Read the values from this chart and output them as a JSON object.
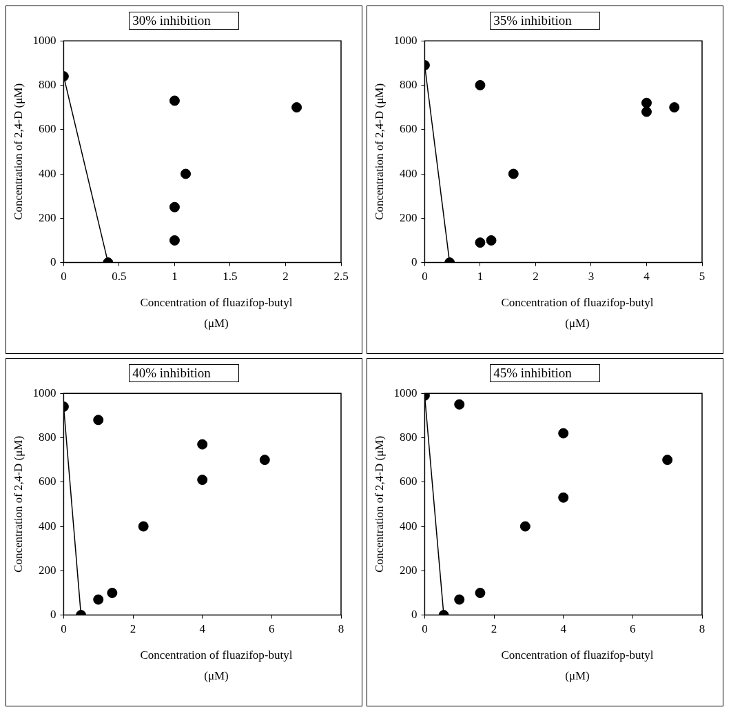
{
  "chart_data": [
    {
      "type": "scatter",
      "title": "30% inhibition",
      "xlabel": "Concentration of fluazifop-butyl (μM)",
      "ylabel": "Concentration of 2,4-D (μM)",
      "xlim": [
        0,
        2.5
      ],
      "xticks": [
        0,
        0.5,
        1,
        1.5,
        2,
        2.5
      ],
      "ylim": [
        0,
        1000
      ],
      "yticks": [
        0,
        200,
        400,
        600,
        800,
        1000
      ],
      "marker": "circle",
      "series": [
        {
          "type": "scatter",
          "color": "#000000",
          "x": [
            0,
            0.4,
            1,
            1.1,
            1,
            1,
            2.1
          ],
          "values": [
            840,
            0,
            730,
            400,
            250,
            100,
            700
          ]
        },
        {
          "type": "line",
          "color": "#000000",
          "marker": "none",
          "x": [
            0,
            0.4
          ],
          "values": [
            840,
            0
          ]
        }
      ]
    },
    {
      "type": "scatter",
      "title": "35% inhibition",
      "xlabel": "Concentration of fluazifop-butyl (μM)",
      "ylabel": "Concentration of 2,4-D (μM)",
      "xlim": [
        0,
        5
      ],
      "xticks": [
        0,
        1,
        2,
        3,
        4,
        5
      ],
      "ylim": [
        0,
        1000
      ],
      "yticks": [
        0,
        200,
        400,
        600,
        800,
        1000
      ],
      "marker": "circle",
      "series": [
        {
          "type": "scatter",
          "color": "#000000",
          "x": [
            0,
            0.45,
            1,
            1,
            1.2,
            1.6,
            4,
            4,
            4.5
          ],
          "values": [
            890,
            0,
            800,
            90,
            100,
            400,
            720,
            680,
            700
          ]
        },
        {
          "type": "line",
          "color": "#000000",
          "marker": "none",
          "x": [
            0,
            0.45
          ],
          "values": [
            890,
            0
          ]
        }
      ]
    },
    {
      "type": "scatter",
      "title": "40% inhibition",
      "xlabel": "Concentration of fluazifop-butyl (μM)",
      "ylabel": "Concentration of 2,4-D (μM)",
      "xlim": [
        0,
        8
      ],
      "xticks": [
        0,
        2,
        4,
        6,
        8
      ],
      "ylim": [
        0,
        1000
      ],
      "yticks": [
        0,
        200,
        400,
        600,
        800,
        1000
      ],
      "marker": "circle",
      "series": [
        {
          "type": "scatter",
          "color": "#000000",
          "x": [
            0,
            0.5,
            1,
            1,
            1.4,
            2.3,
            4,
            4,
            5.8
          ],
          "values": [
            940,
            0,
            880,
            70,
            100,
            400,
            770,
            610,
            700
          ]
        },
        {
          "type": "line",
          "color": "#000000",
          "marker": "none",
          "x": [
            0,
            0.5
          ],
          "values": [
            940,
            0
          ]
        }
      ]
    },
    {
      "type": "scatter",
      "title": "45% inhibition",
      "xlabel": "Concentration of fluazifop-butyl (μM)",
      "ylabel": "Concentration of 2,4-D (μM)",
      "xlim": [
        0,
        8
      ],
      "xticks": [
        0,
        2,
        4,
        6,
        8
      ],
      "ylim": [
        0,
        1000
      ],
      "yticks": [
        0,
        200,
        400,
        600,
        800,
        1000
      ],
      "marker": "circle",
      "series": [
        {
          "type": "scatter",
          "color": "#000000",
          "x": [
            0,
            0.55,
            1,
            1,
            1.6,
            2.9,
            4,
            4,
            7
          ],
          "values": [
            990,
            0,
            950,
            70,
            100,
            400,
            820,
            530,
            700
          ]
        },
        {
          "type": "line",
          "color": "#000000",
          "marker": "none",
          "x": [
            0,
            0.55
          ],
          "values": [
            990,
            0
          ]
        }
      ]
    }
  ]
}
